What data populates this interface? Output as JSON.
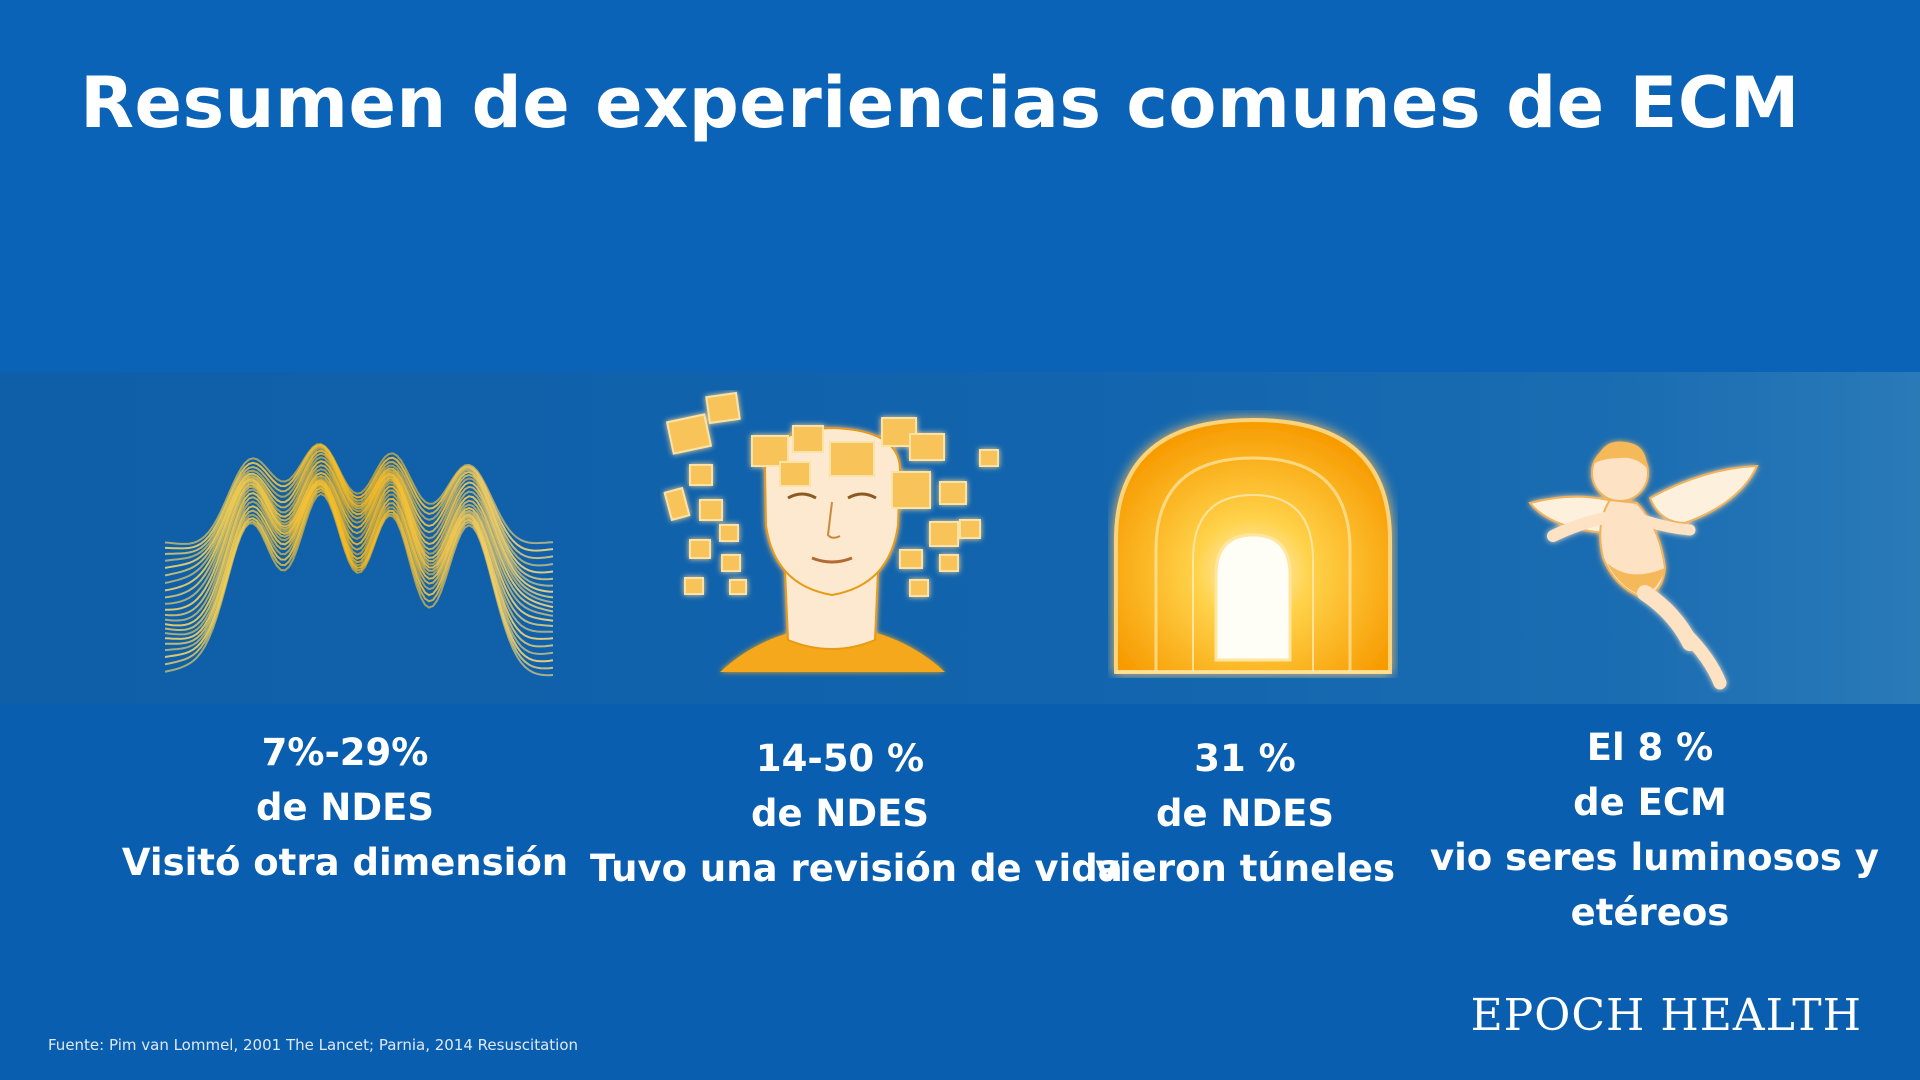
{
  "title": "Resumen de experiencias comunes de ECM",
  "items": [
    {
      "icon": "waves-icon",
      "lines": [
        "7%-29%",
        "de NDES",
        "Visitó otra dimensión"
      ]
    },
    {
      "icon": "head-memories-icon",
      "lines": [
        "14-50 %",
        "de NDES",
        "Tuvo una revisión de vida"
      ]
    },
    {
      "icon": "tunnel-icon",
      "lines": [
        "31 %",
        "de NDES",
        "vieron túneles"
      ]
    },
    {
      "icon": "angel-icon",
      "lines": [
        "El 8 %",
        "de ECM",
        "vio seres luminosos y",
        "etéreos"
      ]
    }
  ],
  "brand": "EPOCH HEALTH",
  "source": "Fuente: Pim van Lommel, 2001 The Lancet; Parnia, 2014 Resuscitation",
  "colors": {
    "background": "#0a5fb1",
    "accent_yellow": "#f6b91d",
    "accent_orange": "#f7a000",
    "text": "#ffffff"
  }
}
